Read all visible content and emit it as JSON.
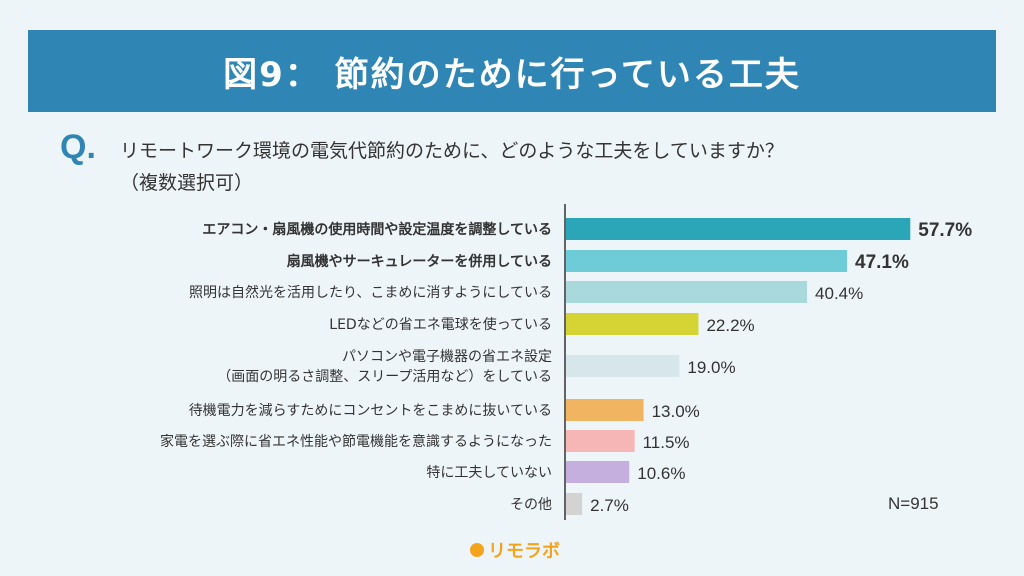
{
  "header": {
    "title": "図9： 節約のために行っている工夫"
  },
  "question": {
    "mark": "Q.",
    "line1": "リモートワーク環境の電気代節約のために、どのような工夫をしていますか？",
    "line2": "（複数選択可）"
  },
  "sample_size": "N=915",
  "brand": {
    "name": "リモラボ",
    "color": "#f4a41c"
  },
  "chart_data": {
    "type": "bar",
    "orientation": "horizontal",
    "categories": [
      [
        "エアコン・扇風機の使用時間や設定温度を調整している"
      ],
      [
        "扇風機やサーキュレーターを併用している"
      ],
      [
        "照明は自然光を活用したり、こまめに消すようにしている"
      ],
      [
        "LEDなどの省エネ電球を使っている"
      ],
      [
        "パソコンや電子機器の省エネ設定",
        "（画面の明るさ調整、スリープ活用など）をしている"
      ],
      [
        "待機電力を減らすためにコンセントをこまめに抜いている"
      ],
      [
        "家電を選ぶ際に省エネ性能や節電機能を意識するようになった"
      ],
      [
        "特に工夫していない"
      ],
      [
        "その他"
      ]
    ],
    "values": [
      57.7,
      47.1,
      40.4,
      22.2,
      19.0,
      13.0,
      11.5,
      10.6,
      2.7
    ],
    "value_labels": [
      "57.7%",
      "47.1%",
      "40.4%",
      "22.2%",
      "19.0%",
      "13.0%",
      "11.5%",
      "10.6%",
      "2.7%"
    ],
    "colors": [
      "#2aa6b8",
      "#6ecbd8",
      "#a9d8dd",
      "#d6d334",
      "#d7e6ea",
      "#f1b562",
      "#f6b6b6",
      "#c4afdf",
      "#d3d3d3"
    ],
    "bold_rows": [
      0,
      1
    ],
    "xlim": [
      0,
      60
    ],
    "grid": false
  }
}
